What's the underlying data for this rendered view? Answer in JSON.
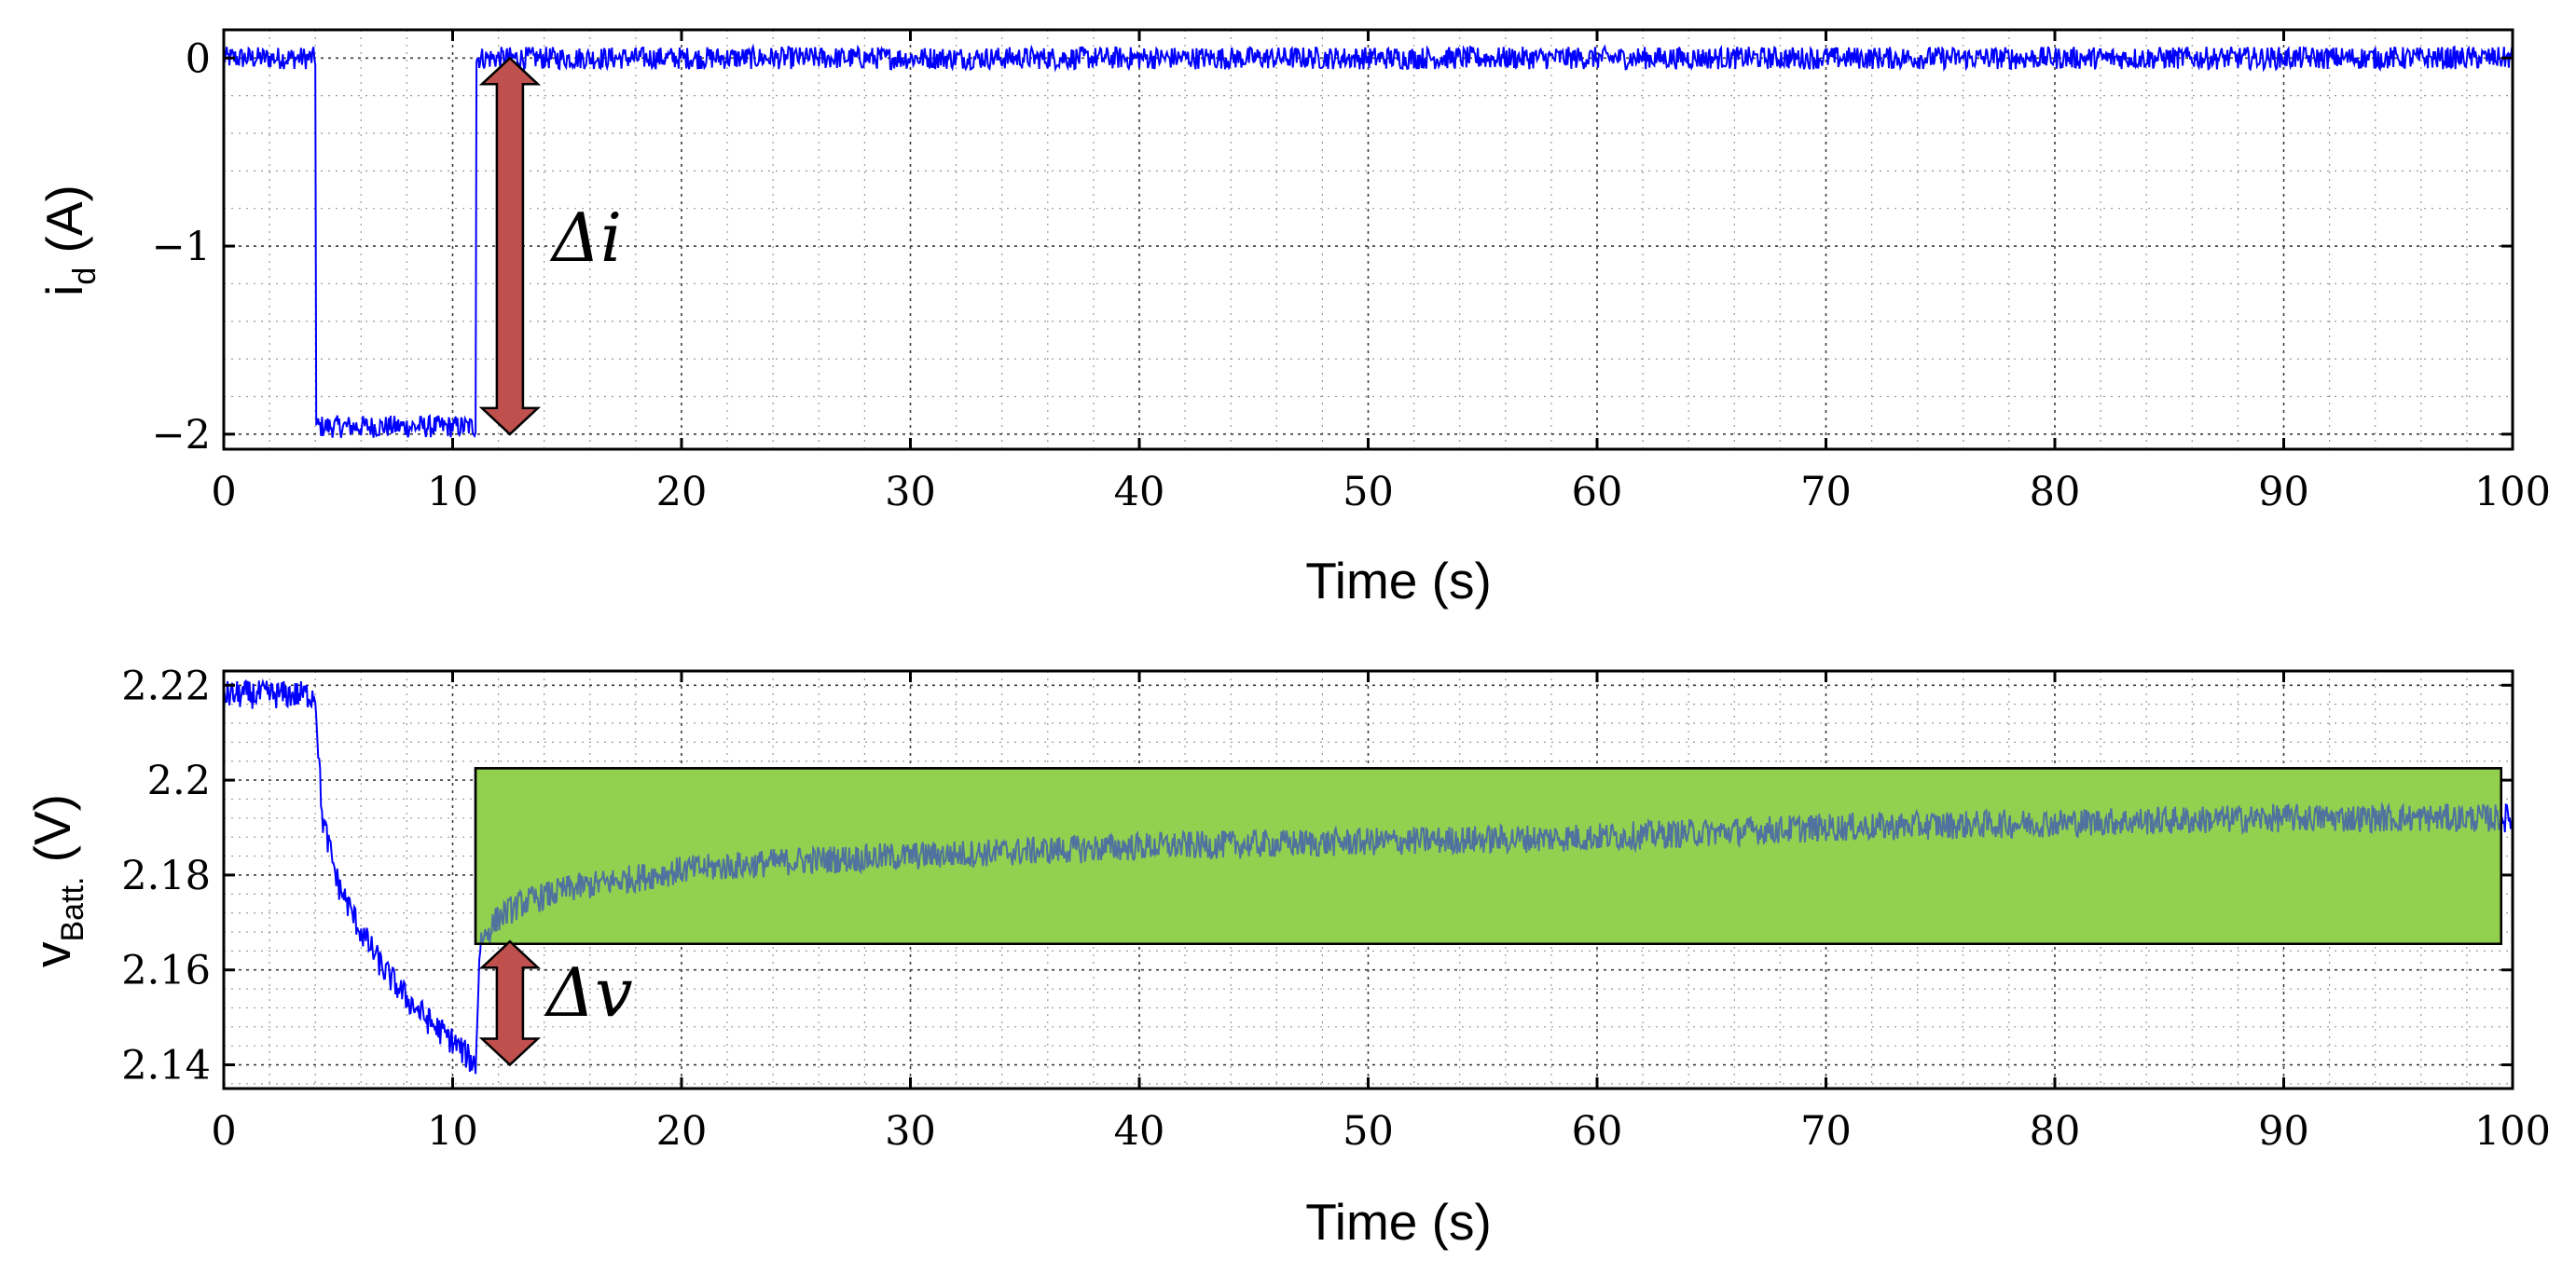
{
  "colors": {
    "signal": "#0000ff",
    "arrow": "#c0504d",
    "highlight_fill": "#92d050",
    "grid": "#3a3a3a"
  },
  "chart_data": [
    {
      "type": "line",
      "ylabel_main": "i",
      "ylabel_sub": "d",
      "ylabel_unit": " (A)",
      "xlabel": "Time (s)",
      "xlim": [
        0,
        100
      ],
      "ylim": [
        -2.08,
        0.15
      ],
      "x_ticks": [
        "0",
        "10",
        "20",
        "30",
        "40",
        "50",
        "60",
        "70",
        "80",
        "90",
        "100"
      ],
      "y_ticks": [
        {
          "value": 0,
          "label": "0"
        },
        {
          "value": -1,
          "label": "−1"
        },
        {
          "value": -2,
          "label": "−2"
        }
      ],
      "grid": true,
      "series": [
        {
          "x": [
            0,
            4.0,
            4.01,
            11.0,
            11.01,
            100
          ],
          "y": [
            0.0,
            0.0,
            -1.96,
            -1.96,
            0.0,
            0.0
          ],
          "noise_amplitude": 0.06
        }
      ],
      "annotations": [
        {
          "type": "double-arrow",
          "x": 12.5,
          "y_from": 0.0,
          "y_to": -2.0,
          "label": "Δi"
        }
      ]
    },
    {
      "type": "line",
      "ylabel_main": "v",
      "ylabel_sub": "Batt.",
      "ylabel_unit": "  (V)",
      "xlabel": "Time (s)",
      "xlim": [
        0,
        100
      ],
      "ylim": [
        2.135,
        2.223
      ],
      "x_ticks": [
        "0",
        "10",
        "20",
        "30",
        "40",
        "50",
        "60",
        "70",
        "80",
        "90",
        "100"
      ],
      "y_ticks": [
        {
          "value": 2.14,
          "label": "2.14"
        },
        {
          "value": 2.16,
          "label": "2.16"
        },
        {
          "value": 2.18,
          "label": "2.18"
        },
        {
          "value": 2.2,
          "label": "2.2"
        },
        {
          "value": 2.22,
          "label": "2.22"
        }
      ],
      "grid": true,
      "series": [
        {
          "x": [
            0,
            4.0,
            4.3,
            5,
            6,
            7,
            8,
            9,
            10,
            11,
            11.2,
            12,
            13,
            15,
            20,
            25,
            30,
            40,
            50,
            60,
            70,
            80,
            90,
            100
          ],
          "y": [
            2.218,
            2.218,
            2.192,
            2.178,
            2.168,
            2.16,
            2.154,
            2.149,
            2.145,
            2.14,
            2.166,
            2.171,
            2.174,
            2.177,
            2.181,
            2.183,
            2.184,
            2.186,
            2.187,
            2.188,
            2.19,
            2.191,
            2.192,
            2.192
          ],
          "noise_amplitude": 0.003
        }
      ],
      "annotations": [
        {
          "type": "double-arrow",
          "x": 12.5,
          "y_from": 2.166,
          "y_to": 2.14,
          "label": "Δv"
        },
        {
          "type": "highlight-box",
          "x_from": 11.0,
          "x_to": 99.5,
          "y_from": 2.1655,
          "y_to": 2.2025
        }
      ]
    }
  ]
}
